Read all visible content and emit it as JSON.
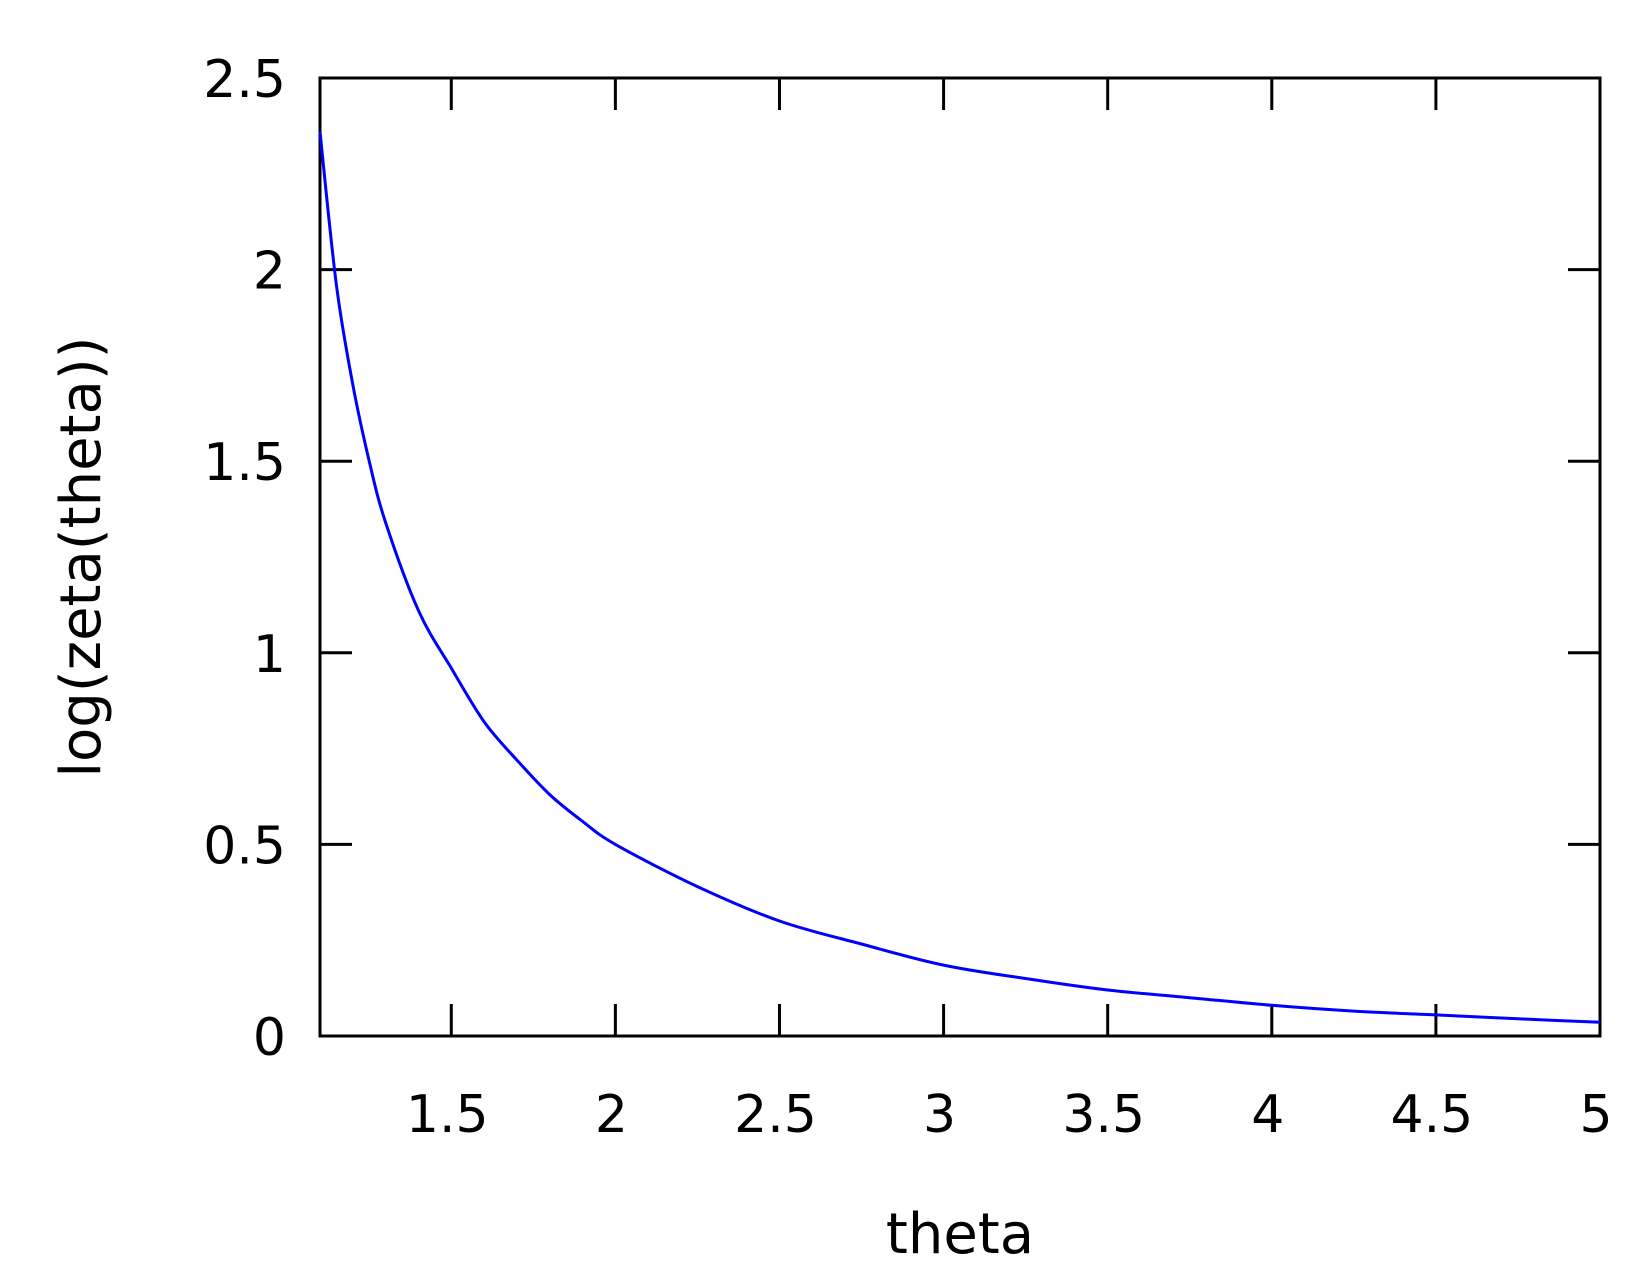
{
  "chart_data": {
    "type": "line",
    "title": "",
    "xlabel": "theta",
    "ylabel": "log(zeta(theta))",
    "xlim": [
      1.1,
      5
    ],
    "ylim": [
      0,
      2.5
    ],
    "xticks": [
      1.5,
      2,
      2.5,
      3,
      3.5,
      4,
      4.5,
      5
    ],
    "xtick_labels": [
      "1.5",
      "2",
      "2.5",
      "3",
      "3.5",
      "4",
      "4.5",
      "5"
    ],
    "yticks": [
      0,
      0.5,
      1,
      1.5,
      2,
      2.5
    ],
    "ytick_labels": [
      "0",
      "0.5",
      "1",
      "1.5",
      "2",
      "2.5"
    ],
    "grid": false,
    "legend": "none",
    "series": [
      {
        "color": "#0000ff",
        "x": [
          1.1,
          1.15,
          1.2,
          1.25,
          1.3,
          1.4,
          1.5,
          1.6,
          1.7,
          1.8,
          1.9,
          2.0,
          2.25,
          2.5,
          2.75,
          3.0,
          3.25,
          3.5,
          3.75,
          4.0,
          4.25,
          4.5,
          4.75,
          5.0
        ],
        "y": [
          2.36,
          1.96,
          1.7,
          1.5,
          1.34,
          1.11,
          0.96,
          0.82,
          0.72,
          0.63,
          0.56,
          0.5,
          0.39,
          0.3,
          0.24,
          0.185,
          0.15,
          0.12,
          0.1,
          0.08,
          0.065,
          0.055,
          0.045,
          0.036
        ]
      }
    ]
  }
}
